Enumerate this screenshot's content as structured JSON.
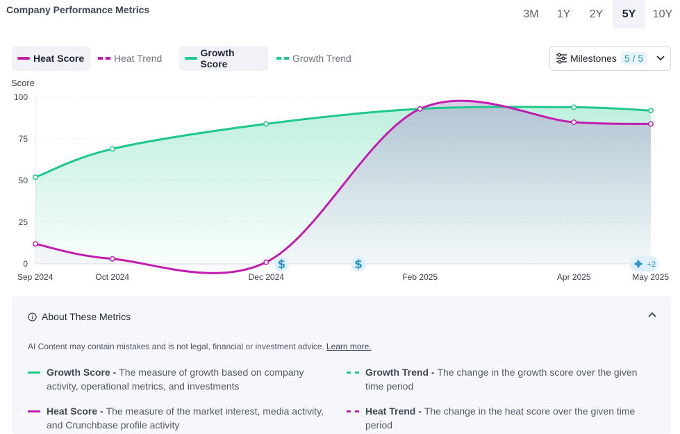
{
  "header": {
    "title": "Company Performance Metrics"
  },
  "range_tabs": [
    {
      "label": "3M",
      "active": false
    },
    {
      "label": "1Y",
      "active": false
    },
    {
      "label": "2Y",
      "active": false
    },
    {
      "label": "5Y",
      "active": true
    },
    {
      "label": "10Y",
      "active": false
    }
  ],
  "legend": {
    "heat_score": "Heat Score",
    "heat_trend": "Heat Trend",
    "growth_score": "Growth Score",
    "growth_trend": "Growth Trend"
  },
  "milestones": {
    "label": "Milestones",
    "count": "5 / 5",
    "overflow_badge": "+2"
  },
  "colors": {
    "heat": "#c21cb0",
    "growth": "#1ec88a",
    "milestone": "#2f93c7"
  },
  "icons": [
    "filter-sliders-icon",
    "chevron-down-icon",
    "dollar-icon",
    "sparkle-icon",
    "info-icon",
    "chevron-up-icon"
  ],
  "chart_data": {
    "type": "area",
    "ylabel": "Score",
    "ylim": [
      0,
      100
    ],
    "yticks": [
      0,
      25,
      50,
      75,
      100
    ],
    "grid": true,
    "x": [
      "Sep 2024",
      "Oct 2024",
      "Dec 2024",
      "Feb 2025",
      "Apr 2025",
      "May 2025"
    ],
    "series": [
      {
        "name": "Growth Score",
        "values": [
          52,
          69,
          84,
          93,
          94,
          92
        ]
      },
      {
        "name": "Heat Score",
        "values": [
          12,
          3,
          1,
          93,
          85,
          84
        ]
      }
    ],
    "milestones": [
      {
        "date": "Dec 2024",
        "icon": "dollar-icon"
      },
      {
        "date": "Jan 2025",
        "icon": "dollar-icon"
      },
      {
        "date": "May 2025",
        "icon": "sparkle-icon"
      }
    ]
  },
  "about": {
    "title": "About These Metrics",
    "disclaimer": "AI Content may contain mistakes and is not legal, financial or investment advice.",
    "learn_more": "Learn more.",
    "definitions": {
      "growth_score": {
        "term": "Growth Score",
        "text": "The measure of growth based on company activity, operational metrics, and investments"
      },
      "growth_trend": {
        "term": "Growth Trend",
        "text": "The change in the growth score over the given time period"
      },
      "heat_score": {
        "term": "Heat Score",
        "text": "The measure of the market interest, media activity, and Crunchbase profile activity"
      },
      "heat_trend": {
        "term": "Heat Trend",
        "text": "The change in the heat score over the given time period"
      }
    }
  }
}
